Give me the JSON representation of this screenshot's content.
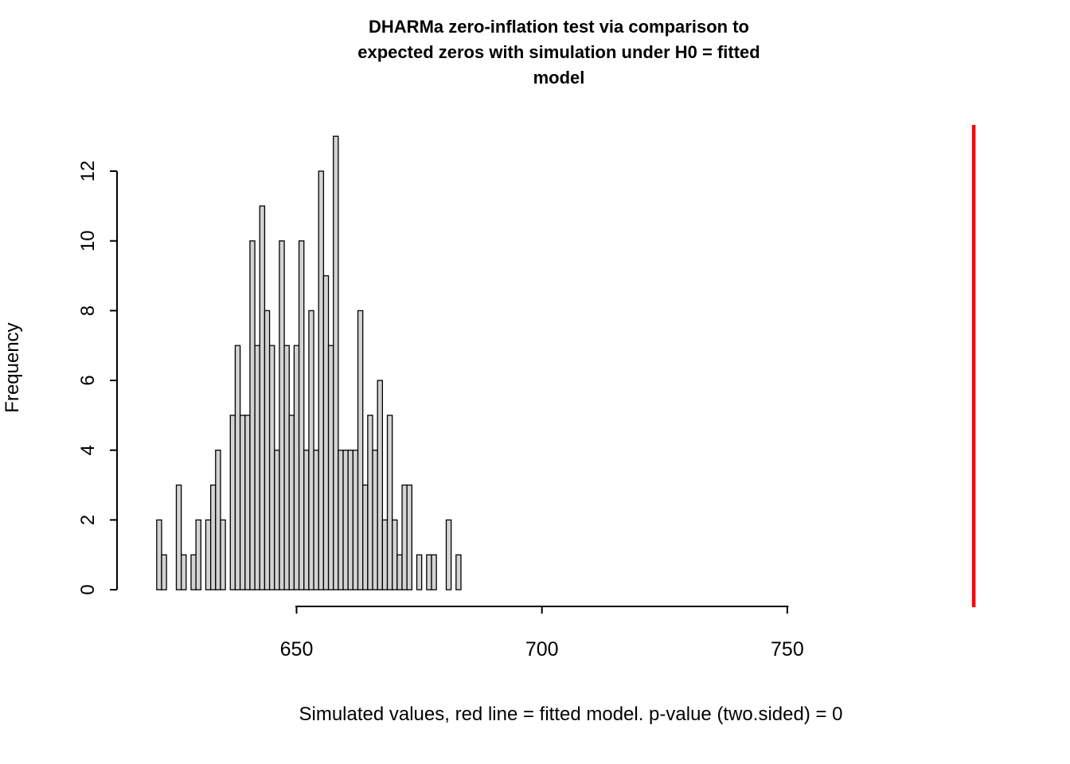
{
  "title": "DHARMa zero-inflation test via comparison to\nexpected zeros with simulation under H0 = fitted\nmodel",
  "x_axis_label": "Simulated values, red line = fitted model. p-value (two.sided) = 0",
  "y_axis_label": "Frequency",
  "p_value": "0",
  "test_alternative": "two.sided",
  "colors": {
    "bar_fill": "#d3d3d3",
    "bar_stroke": "#000000",
    "axis": "#000000",
    "fitted_line": "#ff0000",
    "background": "#ffffff"
  },
  "chart_data": {
    "type": "bar",
    "subtype": "histogram",
    "title": "DHARMa zero-inflation test via comparison to expected zeros with simulation under H0 = fitted model",
    "xlabel": "Simulated values, red line = fitted model. p-value (two.sided) = 0",
    "ylabel": "Frequency",
    "x_first_bin": 622,
    "bin_width": 1,
    "counts": [
      2,
      1,
      0,
      0,
      3,
      1,
      0,
      1,
      2,
      0,
      2,
      3,
      4,
      2,
      0,
      5,
      7,
      5,
      5,
      10,
      7,
      11,
      8,
      7,
      4,
      10,
      7,
      5,
      7,
      10,
      4,
      8,
      4,
      12,
      9,
      7,
      13,
      4,
      4,
      4,
      4,
      8,
      3,
      5,
      4,
      6,
      2,
      5,
      2,
      1,
      3,
      3,
      0,
      1,
      0,
      1,
      1,
      0,
      0,
      2,
      0,
      1,
      0
    ],
    "x_ticks": [
      650,
      700,
      750
    ],
    "y_ticks": [
      0,
      2,
      4,
      6,
      8,
      10,
      12
    ],
    "xlim": [
      622,
      790
    ],
    "ylim": [
      0,
      13
    ],
    "grid": false,
    "legend": "none",
    "red_line_value": 788,
    "red_line_label": "fitted model"
  }
}
